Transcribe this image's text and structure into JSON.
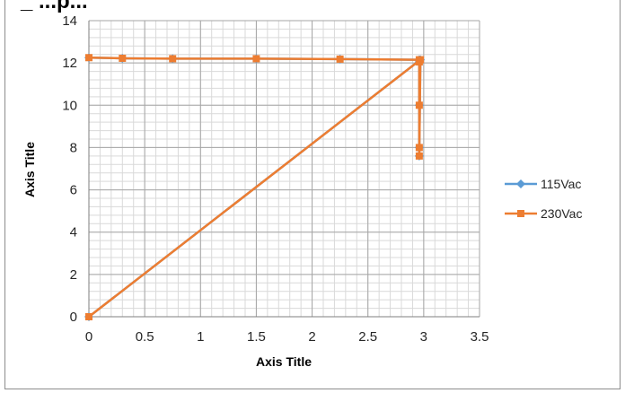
{
  "chart_data": {
    "type": "scatter",
    "title": "_ ...p...",
    "xlabel": "Axis Title",
    "ylabel": "Axis Title",
    "xlim": [
      0,
      3.5
    ],
    "ylim": [
      0,
      14
    ],
    "x_ticks": [
      "0",
      "0.5",
      "1",
      "1.5",
      "2",
      "2.5",
      "3",
      "3.5"
    ],
    "y_ticks": [
      "0",
      "2",
      "4",
      "6",
      "8",
      "10",
      "12",
      "14"
    ],
    "grid": true,
    "legend_position": "right",
    "series": [
      {
        "name": "115Vac",
        "color": "#5b9bd5",
        "marker": "diamond",
        "x": [
          0,
          0.3,
          0.75,
          1.5,
          2.25,
          2.96,
          2.96,
          2.96,
          2.96,
          2.96,
          2.97,
          0
        ],
        "y": [
          12.25,
          12.22,
          12.2,
          12.2,
          12.18,
          12.15,
          12.05,
          10,
          8,
          7.6,
          12.15,
          0
        ]
      },
      {
        "name": "230Vac",
        "color": "#ed7d31",
        "marker": "square",
        "x": [
          0,
          0.3,
          0.75,
          1.5,
          2.25,
          2.96,
          2.96,
          2.96,
          2.96,
          2.96,
          2.97,
          0
        ],
        "y": [
          12.25,
          12.22,
          12.2,
          12.2,
          12.18,
          12.15,
          12.05,
          10,
          8,
          7.6,
          12.15,
          0
        ]
      }
    ]
  }
}
